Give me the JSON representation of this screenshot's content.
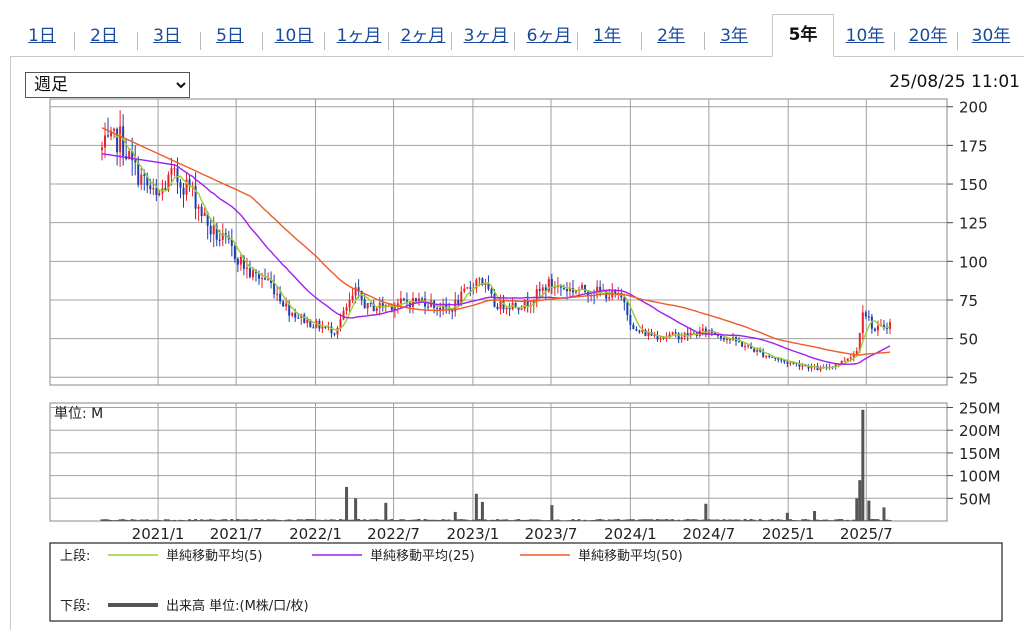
{
  "tabs": [
    {
      "label": "1日"
    },
    {
      "label": "2日"
    },
    {
      "label": "3日"
    },
    {
      "label": "5日"
    },
    {
      "label": "10日"
    },
    {
      "label": "1ヶ月"
    },
    {
      "label": "2ヶ月"
    },
    {
      "label": "3ヶ月"
    },
    {
      "label": "6ヶ月"
    },
    {
      "label": "1年"
    },
    {
      "label": "2年"
    },
    {
      "label": "3年"
    },
    {
      "label": "5年"
    },
    {
      "label": "10年"
    },
    {
      "label": "20年"
    },
    {
      "label": "30年"
    }
  ],
  "active_tab": "5年",
  "period_select": {
    "value": "週足",
    "options": [
      "週足"
    ]
  },
  "timestamp": "25/08/25 11:01",
  "colors": {
    "up": "#e8202a",
    "down": "#1a3fb0",
    "ma5": "#9acd32",
    "ma25": "#a020f0",
    "ma50": "#f05a28",
    "volume": "#555555",
    "grid": "#a0a0a0"
  },
  "chart_data": [
    {
      "type": "candlestick",
      "ylim": [
        20,
        205
      ],
      "yticks": [
        200,
        175,
        150,
        125,
        100,
        75,
        50,
        25
      ],
      "xticks": [
        "2021/1",
        "2021/7",
        "2022/1",
        "2022/7",
        "2023/1",
        "2023/7",
        "2024/1",
        "2024/7",
        "2025/1",
        "2025/7"
      ],
      "x_range": [
        "2020/08",
        "2025/08"
      ],
      "price_path": [
        [
          "2020-08-24",
          172
        ],
        [
          "2020-10-05",
          180
        ],
        [
          "2020-11-02",
          162
        ],
        [
          "2020-12-28",
          140
        ],
        [
          "2021-02-01",
          155
        ],
        [
          "2021-03-15",
          148
        ],
        [
          "2021-05-03",
          120
        ],
        [
          "2021-06-14",
          110
        ],
        [
          "2021-08-02",
          92
        ],
        [
          "2021-09-13",
          88
        ],
        [
          "2021-11-01",
          68
        ],
        [
          "2021-12-20",
          60
        ],
        [
          "2022-02-14",
          55
        ],
        [
          "2022-04-04",
          80
        ],
        [
          "2022-05-02",
          70
        ],
        [
          "2022-06-27",
          72
        ],
        [
          "2022-09-05",
          75
        ],
        [
          "2022-11-07",
          68
        ],
        [
          "2023-01-16",
          90
        ],
        [
          "2023-02-20",
          72
        ],
        [
          "2023-05-01",
          72
        ],
        [
          "2023-06-26",
          85
        ],
        [
          "2023-08-14",
          82
        ],
        [
          "2023-10-30",
          80
        ],
        [
          "2023-12-18",
          75
        ],
        [
          "2024-01-08",
          55
        ],
        [
          "2024-03-04",
          52
        ],
        [
          "2024-05-06",
          52
        ],
        [
          "2024-07-01",
          55
        ],
        [
          "2024-09-02",
          48
        ],
        [
          "2024-11-04",
          40
        ],
        [
          "2024-12-23",
          35
        ],
        [
          "2025-02-03",
          33
        ],
        [
          "2025-03-17",
          30
        ],
        [
          "2025-05-05",
          35
        ],
        [
          "2025-06-09",
          42
        ],
        [
          "2025-06-23",
          70
        ],
        [
          "2025-07-21",
          55
        ],
        [
          "2025-08-25",
          60
        ]
      ],
      "moving_averages": [
        {
          "name": "単純移動平均(5)",
          "color": "#9acd32"
        },
        {
          "name": "単純移動平均(25)",
          "color": "#a020f0"
        },
        {
          "name": "単純移動平均(50)",
          "color": "#f05a28"
        }
      ]
    },
    {
      "type": "bar",
      "unit_label": "単位: M",
      "ylim": [
        0,
        260
      ],
      "yticks": [
        "250M",
        "200M",
        "150M",
        "100M",
        "50M"
      ],
      "ytick_values": [
        250,
        200,
        150,
        100,
        50
      ],
      "spikes": [
        [
          "2022-03-14",
          75
        ],
        [
          "2022-04-04",
          50
        ],
        [
          "2022-06-13",
          40
        ],
        [
          "2022-11-21",
          20
        ],
        [
          "2023-01-09",
          60
        ],
        [
          "2023-01-23",
          42
        ],
        [
          "2023-07-03",
          35
        ],
        [
          "2024-06-24",
          38
        ],
        [
          "2024-12-30",
          18
        ],
        [
          "2025-03-03",
          22
        ],
        [
          "2025-06-09",
          50
        ],
        [
          "2025-06-16",
          90
        ],
        [
          "2025-06-23",
          245
        ],
        [
          "2025-07-07",
          45
        ],
        [
          "2025-08-11",
          30
        ]
      ]
    }
  ],
  "legend": {
    "upper_label": "上段:",
    "lower_label": "下段:",
    "items": [
      {
        "name": "単純移動平均(5)",
        "color": "#9acd32"
      },
      {
        "name": "単純移動平均(25)",
        "color": "#a020f0"
      },
      {
        "name": "単純移動平均(50)",
        "color": "#f05a28"
      }
    ],
    "volume_label": "出来高 単位:(M株/口/枚)"
  }
}
